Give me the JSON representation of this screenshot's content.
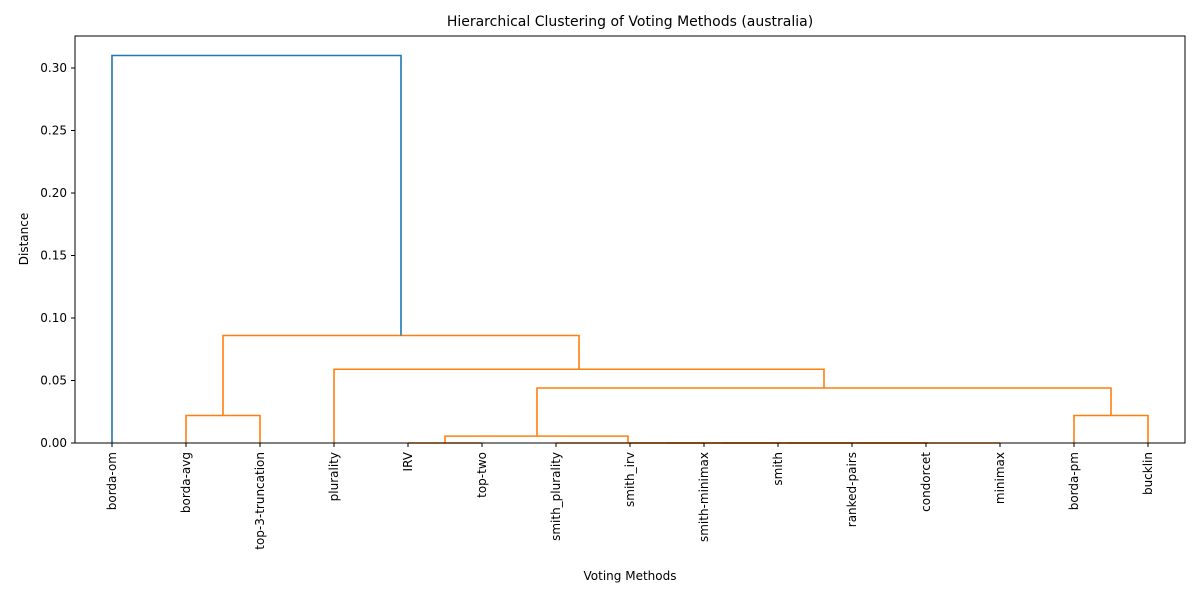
{
  "chart_data": {
    "type": "dendrogram",
    "title": "Hierarchical Clustering of Voting Methods (australia)",
    "xlabel": "Voting Methods",
    "ylabel": "Distance",
    "ylim": [
      0,
      0.325
    ],
    "yticks": [
      "0.00",
      "0.05",
      "0.10",
      "0.15",
      "0.20",
      "0.25",
      "0.30"
    ],
    "grid": false,
    "leaves": [
      "borda-om",
      "borda-avg",
      "top-3-truncation",
      "plurality",
      "IRV",
      "top-two",
      "smith_plurality",
      "smith_irv",
      "smith-minimax",
      "smith",
      "ranked-pairs",
      "condorcet",
      "minimax",
      "borda-pm",
      "bucklin"
    ],
    "colors": {
      "above_threshold": "#1f77b4",
      "cluster": "#ff7f0e",
      "axis": "#000000"
    },
    "links": [
      {
        "left": "IRV",
        "right": "top-two",
        "height": 0.0,
        "color": "#ff7f0e"
      },
      {
        "left": "smith_irv",
        "right": "smith-minimax",
        "height": 0.0,
        "color": "#ff7f0e"
      },
      {
        "left": "[smith_irv,smith-minimax]",
        "right": "smith",
        "height": 0.0,
        "color": "#ff7f0e"
      },
      {
        "left": "[...smith]",
        "right": "ranked-pairs",
        "height": 0.0,
        "color": "#ff7f0e"
      },
      {
        "left": "[...ranked-pairs]",
        "right": "condorcet",
        "height": 0.0,
        "color": "#ff7f0e"
      },
      {
        "left": "[...condorcet]",
        "right": "minimax",
        "height": 0.0,
        "color": "#ff7f0e"
      },
      {
        "left": "[IRV,top-two]",
        "right": "[smith_plurality ... minimax]",
        "height": 0.0055,
        "color": "#ff7f0e"
      },
      {
        "left": "borda-avg",
        "right": "top-3-truncation",
        "height": 0.022,
        "color": "#ff7f0e"
      },
      {
        "left": "borda-pm",
        "right": "bucklin",
        "height": 0.022,
        "color": "#ff7f0e"
      },
      {
        "left": "[IRV ... minimax]",
        "right": "[borda-pm,bucklin]",
        "height": 0.044,
        "color": "#ff7f0e"
      },
      {
        "left": "plurality",
        "right": "[IRV ... bucklin]",
        "height": 0.059,
        "color": "#ff7f0e"
      },
      {
        "left": "[borda-avg,top-3-truncation]",
        "right": "[plurality ... bucklin]",
        "height": 0.086,
        "color": "#ff7f0e"
      },
      {
        "left": "borda-om",
        "right": "[borda-avg ... bucklin]",
        "height": 0.31,
        "color": "#1f77b4"
      }
    ]
  }
}
